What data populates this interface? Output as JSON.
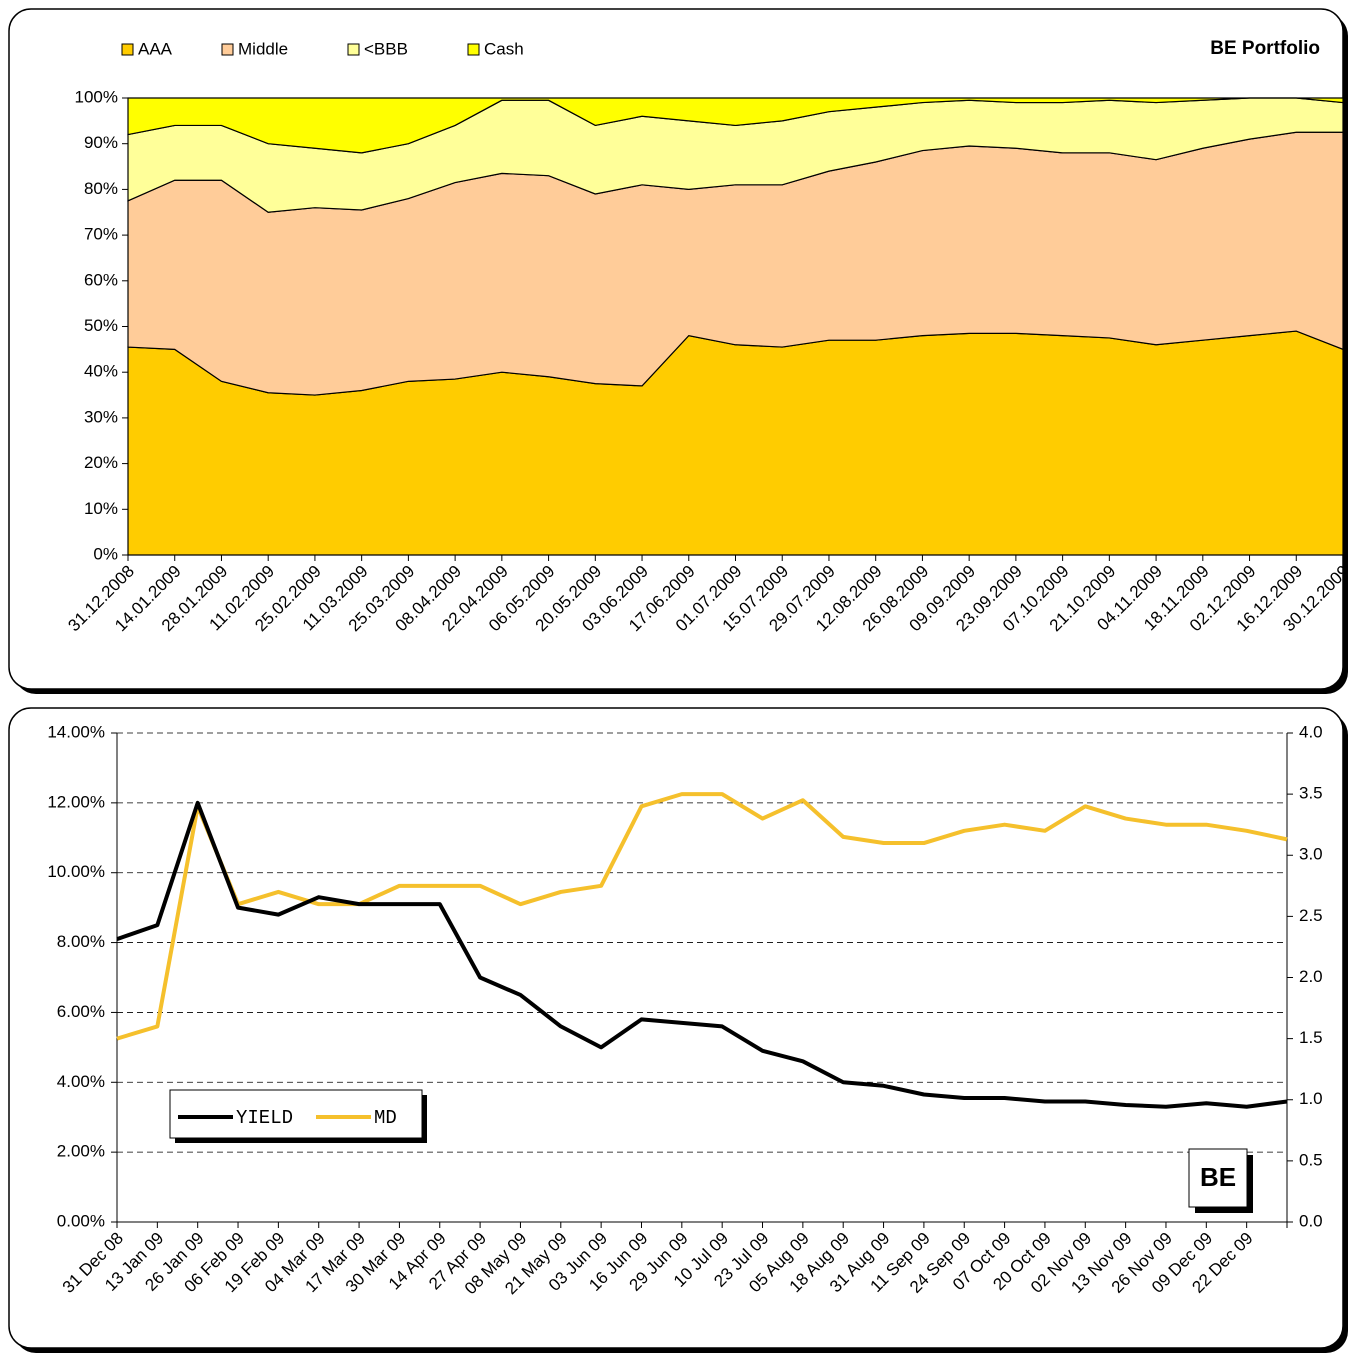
{
  "chart_data": [
    {
      "type": "stacked_area",
      "title": "BE Portfolio",
      "categories": [
        "31.12.2008",
        "14.01.2009",
        "28.01.2009",
        "11.02.2009",
        "25.02.2009",
        "11.03.2009",
        "25.03.2009",
        "08.04.2009",
        "22.04.2009",
        "06.05.2009",
        "20.05.2009",
        "03.06.2009",
        "17.06.2009",
        "01.07.2009",
        "15.07.2009",
        "29.07.2009",
        "12.08.2009",
        "26.08.2009",
        "09.09.2009",
        "23.09.2009",
        "07.10.2009",
        "21.10.2009",
        "04.11.2009",
        "18.11.2009",
        "02.12.2009",
        "16.12.2009",
        "30.12.2009"
      ],
      "series": [
        {
          "name": "AAA",
          "color": "#ffcc00",
          "values": [
            45.5,
            45,
            38,
            35.5,
            35,
            36,
            38,
            38.5,
            40,
            39,
            37.5,
            37,
            48,
            46,
            45.5,
            47,
            47,
            48,
            48.5,
            48.5,
            48,
            47.5,
            46,
            47,
            48,
            49,
            45
          ]
        },
        {
          "name": "Middle",
          "color": "#ffcc99",
          "values": [
            32,
            37,
            44,
            39.5,
            41,
            39.5,
            40,
            43,
            43.5,
            44,
            41.5,
            44,
            32,
            35,
            35.5,
            37,
            39,
            40.5,
            41,
            40.5,
            40,
            40.5,
            40.5,
            42,
            43,
            43.5,
            47.5
          ]
        },
        {
          "name": "<BBB",
          "color": "#ffff99",
          "values": [
            14.5,
            12,
            12,
            15,
            13,
            12.5,
            12,
            12.5,
            16,
            16.5,
            15,
            15,
            15,
            13,
            14,
            13,
            12,
            10.5,
            10,
            10,
            11,
            11.5,
            12.5,
            10.5,
            9,
            7.5,
            6.5
          ]
        },
        {
          "name": "Cash",
          "color": "#ffff00",
          "values": [
            8,
            6,
            6,
            10,
            11,
            12,
            10,
            6,
            0.5,
            0.5,
            6,
            4,
            5,
            6,
            5,
            3,
            2,
            1,
            0.5,
            1,
            1,
            0.5,
            1,
            0.5,
            0,
            0,
            1
          ]
        }
      ],
      "ylim": [
        0,
        100
      ],
      "yticks": [
        {
          "value": 0,
          "label": "0%"
        },
        {
          "value": 10,
          "label": "10%"
        },
        {
          "value": 20,
          "label": "20%"
        },
        {
          "value": 30,
          "label": "30%"
        },
        {
          "value": 40,
          "label": "40%"
        },
        {
          "value": 50,
          "label": "50%"
        },
        {
          "value": 60,
          "label": "60%"
        },
        {
          "value": 70,
          "label": "70%"
        },
        {
          "value": 80,
          "label": "80%"
        },
        {
          "value": 90,
          "label": "90%"
        },
        {
          "value": 100,
          "label": "100%"
        }
      ],
      "legend": "top-left"
    },
    {
      "type": "line",
      "annotation": "BE",
      "categories": [
        "31 Dec 08",
        "13 Jan 09",
        "26 Jan 09",
        "06 Feb 09",
        "19 Feb 09",
        "04 Mar 09",
        "17 Mar 09",
        "30 Mar 09",
        "14 Apr 09",
        "27 Apr 09",
        "08 May 09",
        "21 May 09",
        "03 Jun 09",
        "16 Jun 09",
        "29 Jun 09",
        "10 Jul 09",
        "23 Jul 09",
        "05 Aug 09",
        "18 Aug 09",
        "31 Aug 09",
        "11 Sep 09",
        "24 Sep 09",
        "07 Oct 09",
        "20 Oct 09",
        "02 Nov 09",
        "13 Nov 09",
        "26 Nov 09",
        "09 Dec 09",
        "22 Dec 09",
        null
      ],
      "series": [
        {
          "name": "YIELD",
          "color": "#000000",
          "values": [
            8.1,
            8.5,
            12,
            9.0,
            8.8,
            9.3,
            9.1,
            9.1,
            9.1,
            7.0,
            6.5,
            5.6,
            5.0,
            5.8,
            5.7,
            5.6,
            4.9,
            4.6,
            4.0,
            3.9,
            3.65,
            3.55,
            3.55,
            3.45,
            3.45,
            3.35,
            3.3,
            3.4,
            3.3,
            3.45
          ]
        },
        {
          "name": "MD",
          "color": "#f5c02c",
          "axis": "y2",
          "values": [
            1.5,
            1.6,
            3.4,
            2.6,
            2.7,
            2.6,
            2.6,
            2.75,
            2.75,
            2.75,
            2.6,
            2.7,
            2.75,
            3.4,
            3.5,
            3.5,
            3.3,
            3.45,
            3.15,
            3.1,
            3.1,
            3.2,
            3.25,
            3.2,
            3.4,
            3.3,
            3.25,
            3.25,
            3.2,
            3.13
          ]
        }
      ],
      "ylim": [
        0,
        14
      ],
      "yticks": [
        {
          "value": 0,
          "label": "0.00%"
        },
        {
          "value": 2,
          "label": "2.00%"
        },
        {
          "value": 4,
          "label": "4.00%"
        },
        {
          "value": 6,
          "label": "6.00%"
        },
        {
          "value": 8,
          "label": "8.00%"
        },
        {
          "value": 10,
          "label": "10.00%"
        },
        {
          "value": 12,
          "label": "12.00%"
        },
        {
          "value": 14,
          "label": "14.00%"
        }
      ],
      "y2lim": [
        0,
        4
      ],
      "y2ticks": [
        {
          "value": 0,
          "label": "0.0"
        },
        0.5,
        {
          "value": 1,
          "label": "1.0"
        },
        1.5,
        {
          "value": 2,
          "label": "2.0"
        },
        2.5,
        {
          "value": 3,
          "label": "3.0"
        },
        3.5,
        {
          "value": 4,
          "label": "4.0"
        }
      ],
      "grid": true,
      "legend": "bottom-left"
    }
  ]
}
